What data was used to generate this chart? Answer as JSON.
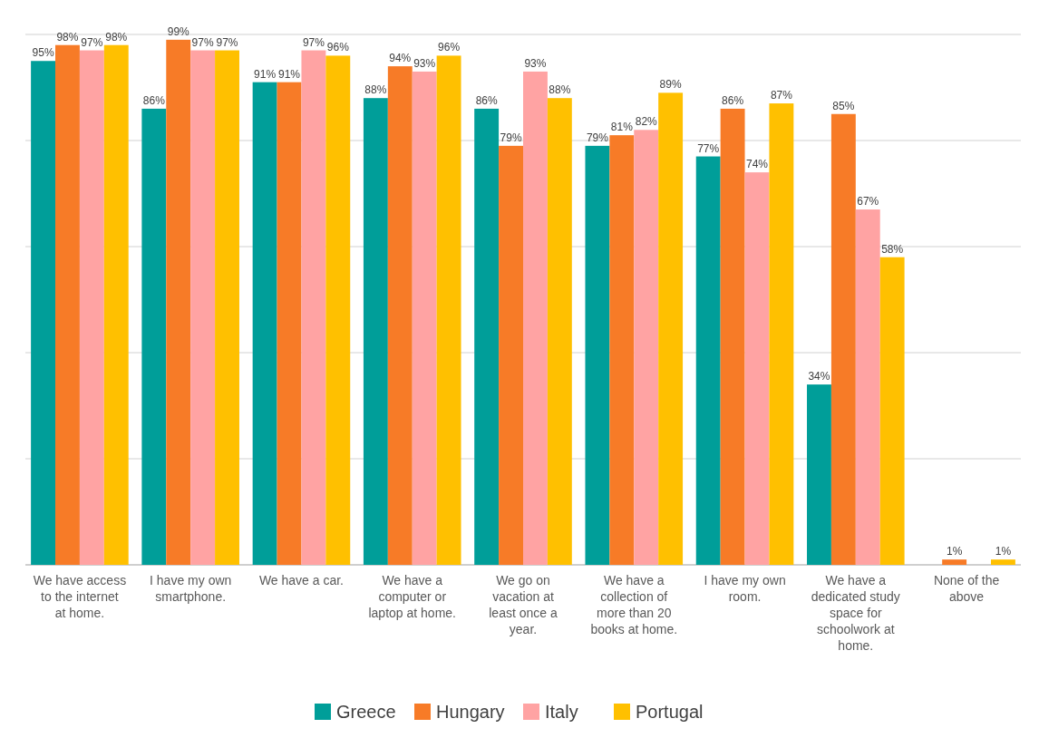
{
  "chart_data": {
    "type": "bar",
    "categories": [
      "We have access to the internet at home.",
      "I have my own smartphone.",
      "We have a car.",
      "We have a computer or laptop at home.",
      "We go on vacation at least once a year.",
      "We have a collection of more than 20 books at home.",
      "I have my own room.",
      "We have a dedicated study space for schoolwork at home.",
      "None of the above"
    ],
    "series": [
      {
        "name": "Greece",
        "color": "#009e99",
        "values": [
          95,
          86,
          91,
          88,
          86,
          79,
          77,
          34,
          null
        ],
        "value_labels": [
          "95%",
          "86%",
          "91%",
          "88%",
          "86%",
          "79%",
          "77%",
          "34%",
          null
        ]
      },
      {
        "name": "Hungary",
        "color": "#f77b27",
        "values": [
          98,
          99,
          91,
          94,
          79,
          81,
          86,
          85,
          1
        ],
        "value_labels": [
          "98%",
          "99%",
          "91%",
          "94%",
          "79%",
          "81%",
          "86%",
          "85%",
          "1%"
        ]
      },
      {
        "name": "Italy",
        "color": "#ffa3a3",
        "values": [
          97,
          97,
          97,
          93,
          93,
          82,
          74,
          67,
          null
        ],
        "value_labels": [
          "97%",
          "97%",
          "97%",
          "93%",
          "93%",
          "82%",
          "74%",
          "67%",
          null
        ]
      },
      {
        "name": "Portugal",
        "color": "#ffc000",
        "values": [
          98,
          97,
          96,
          96,
          88,
          89,
          87,
          58,
          1
        ],
        "value_labels": [
          "98%",
          "97%",
          "96%",
          "96%",
          "88%",
          "89%",
          "87%",
          "58%",
          "1%"
        ]
      }
    ],
    "ylim": [
      0,
      100
    ],
    "yticks": [
      {
        "value": 0,
        "label": null
      },
      {
        "value": 20,
        "label": null
      },
      {
        "value": 40,
        "label": null
      },
      {
        "value": 60,
        "label": null
      },
      {
        "value": 80,
        "label": null
      },
      {
        "value": 100,
        "label": null
      }
    ],
    "tick_labels": "x",
    "grid": "y",
    "legend": "bottom"
  }
}
